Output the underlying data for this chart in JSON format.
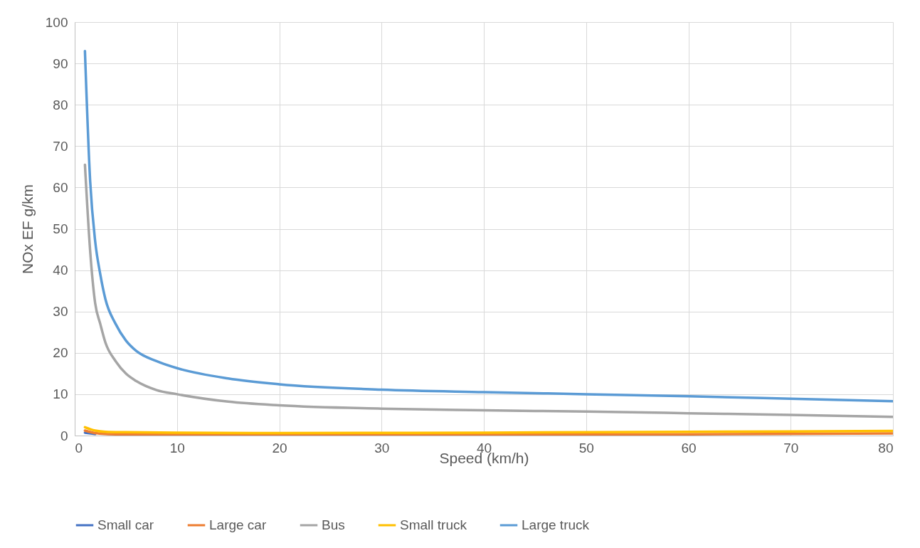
{
  "chart_data": {
    "type": "line",
    "xlabel": "Speed (km/h)",
    "ylabel": "NOx EF g/km",
    "xlim": [
      0,
      80
    ],
    "ylim": [
      0,
      100
    ],
    "xticks": [
      0,
      10,
      20,
      30,
      40,
      50,
      60,
      70,
      80
    ],
    "yticks": [
      0,
      10,
      20,
      30,
      40,
      50,
      60,
      70,
      80,
      90,
      100
    ],
    "grid": true,
    "legend": "bottom",
    "marker": "none",
    "line_style": "solid",
    "series": [
      {
        "name": "Small car",
        "color": "#4472c4",
        "x": [
          1,
          2
        ],
        "values": [
          0.7,
          0.4
        ]
      },
      {
        "name": "Large car",
        "color": "#ed7d31",
        "x": [
          1,
          2,
          3,
          5,
          10,
          20,
          40,
          60,
          80
        ],
        "values": [
          1.2,
          0.6,
          0.4,
          0.3,
          0.2,
          0.2,
          0.2,
          0.3,
          0.5
        ]
      },
      {
        "name": "Bus",
        "color": "#a5a5a5",
        "x": [
          1,
          1.5,
          2,
          2.5,
          3,
          4,
          5,
          6,
          8,
          10,
          15,
          20,
          30,
          40,
          50,
          60,
          70,
          80
        ],
        "values": [
          65.5,
          45,
          32,
          27,
          22.5,
          18,
          15,
          13.2,
          11,
          10,
          8.2,
          7.3,
          6.5,
          6.1,
          5.8,
          5.4,
          5,
          4.5
        ]
      },
      {
        "name": "Small truck",
        "color": "#ffc000",
        "x": [
          1,
          2,
          3,
          5,
          10,
          20,
          40,
          60,
          80
        ],
        "values": [
          2,
          1.2,
          0.9,
          0.8,
          0.7,
          0.6,
          0.7,
          0.9,
          1.1
        ]
      },
      {
        "name": "Large truck",
        "color": "#5b9bd5",
        "x": [
          1,
          1.5,
          2,
          2.5,
          3,
          4,
          5,
          6,
          8,
          10,
          15,
          20,
          30,
          40,
          50,
          60,
          70,
          80
        ],
        "values": [
          93,
          62,
          47,
          39,
          33,
          27,
          23,
          20.5,
          18,
          16.3,
          13.8,
          12.4,
          11.1,
          10.5,
          10,
          9.5,
          8.9,
          8.3
        ]
      }
    ]
  }
}
